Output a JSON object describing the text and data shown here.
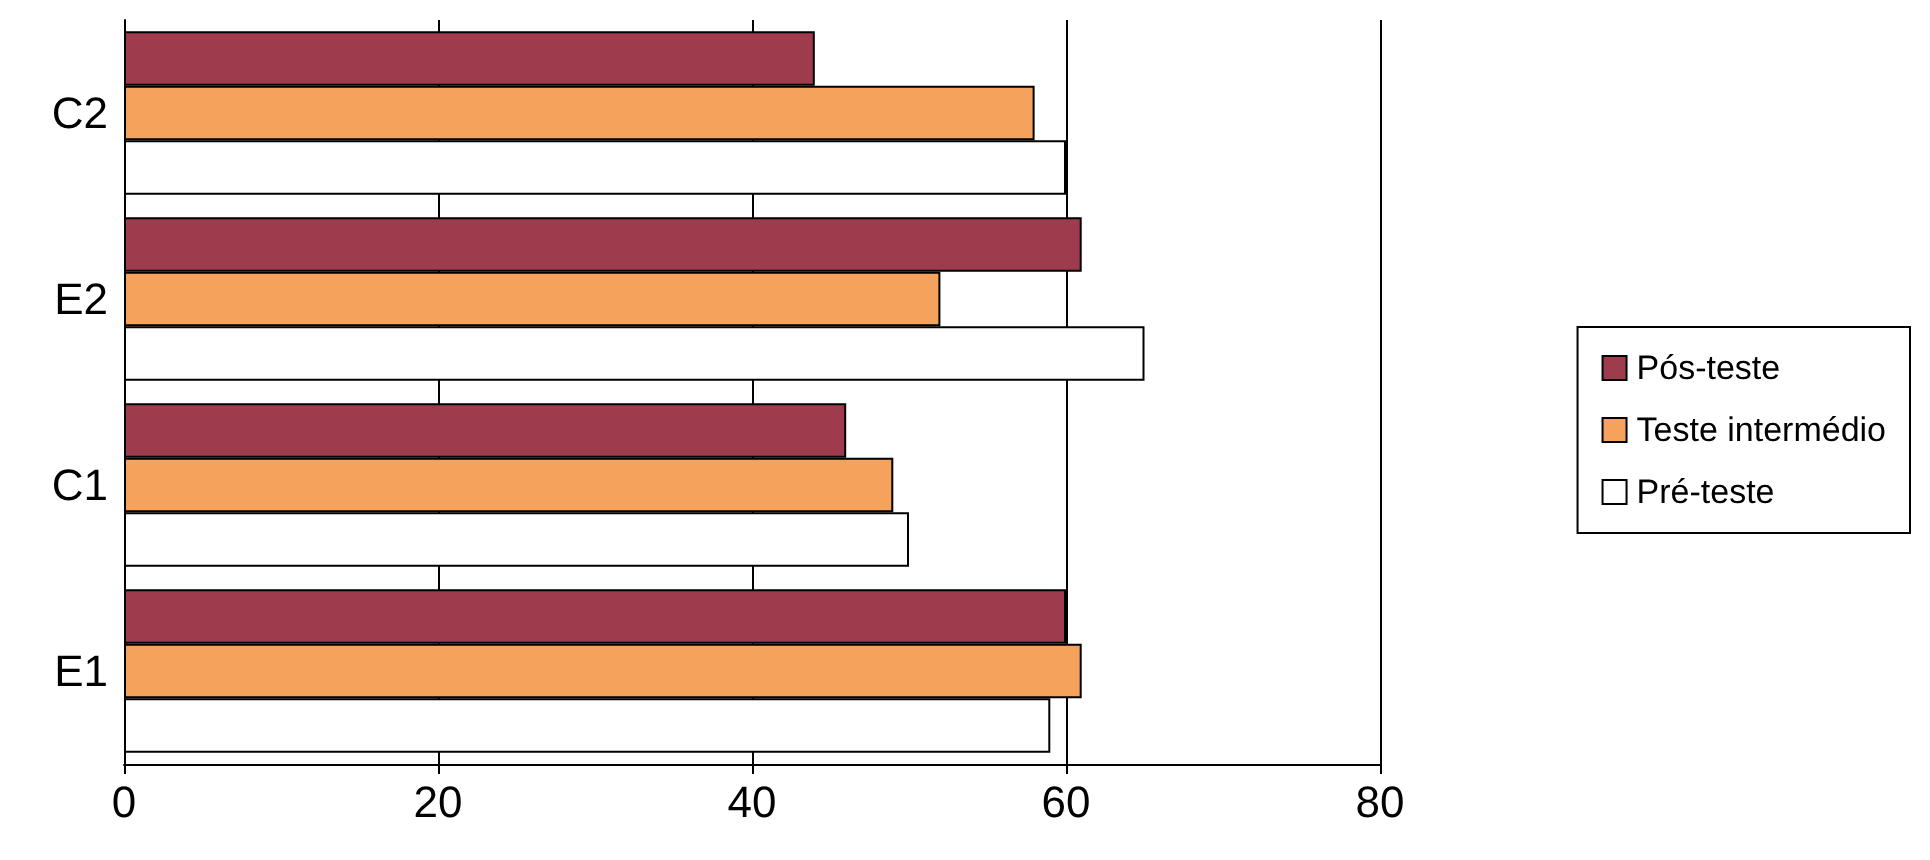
{
  "chart_data": {
    "type": "bar",
    "orientation": "horizontal",
    "categories": [
      "C2",
      "E2",
      "C1",
      "E1"
    ],
    "series": [
      {
        "name": "Pós-teste",
        "color": "#9e3b4c",
        "values": [
          44,
          61,
          46,
          60
        ]
      },
      {
        "name": "Teste intermédio",
        "color": "#f5a35c",
        "values": [
          58,
          52,
          49,
          61
        ]
      },
      {
        "name": "Pré-teste",
        "color": "#ffffff",
        "values": [
          60,
          65,
          50,
          59
        ]
      }
    ],
    "xlim": [
      0,
      80
    ],
    "xticks": [
      0,
      20,
      40,
      60,
      80
    ],
    "grid": "x",
    "legend": "right"
  }
}
